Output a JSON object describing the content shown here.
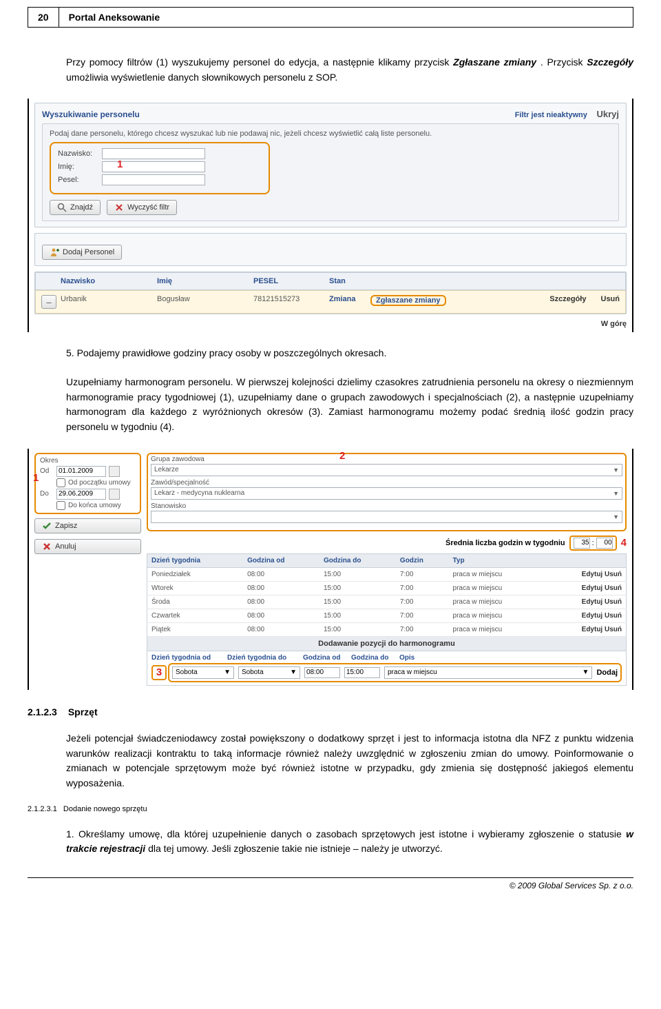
{
  "page": {
    "number": "20",
    "title": "Portal Aneksowanie"
  },
  "para1": {
    "pre": "Przy pomocy filtrów (1) wyszukujemy personel do edycja, a następnie klikamy przycisk ",
    "kw1": "Zgłaszane zmiany",
    "mid": ". Przycisk ",
    "kw2": "Szczegóły",
    "post": " umożliwia wyświetlenie danych słownikowych personelu z SOP."
  },
  "shot1": {
    "panel_title": "Wyszukiwanie personelu",
    "filter_status": "Filtr jest nieaktywny",
    "ukryj": "Ukryj",
    "hint": "Podaj dane personelu, którego chcesz wyszukać lub nie podawaj nic, jeżeli chcesz wyświetlić całą liste personelu.",
    "fields": {
      "nazwisko": "Nazwisko:",
      "imie": "Imię:",
      "pesel": "Pesel:"
    },
    "callout1": "1",
    "btn_find": "Znajdź",
    "btn_clear": "Wyczyść filtr",
    "btn_add": "Dodaj Personel",
    "cols": {
      "nazwisko": "Nazwisko",
      "imie": "Imię",
      "pesel": "PESEL",
      "stan": "Stan"
    },
    "row": {
      "nazwisko": "Urbanik",
      "imie": "Bogusław",
      "pesel": "78121515273",
      "stan": "Zmiana",
      "zglaszane": "Zgłaszane zmiany",
      "szczegoly": "Szczegóły",
      "usun": "Usuń"
    },
    "wgore": "W górę"
  },
  "para2": "5. Podajemy prawidłowe godziny pracy osoby w poszczególnych okresach.",
  "para3": "Uzupełniamy harmonogram personelu. W pierwszej kolejności dzielimy czasokres zatrudnienia personelu na okresy o niezmiennym harmonogramie pracy tygodniowej (1), uzupełniamy dane o grupach zawodowych i specjalnościach (2), a następnie uzupełniamy harmonogram dla każdego z wyróżnionych okresów (3). Zamiast harmonogramu możemy podać średnią ilość godzin pracy personelu w tygodniu (4).",
  "shot2": {
    "okres_label": "Okres",
    "od": "Od",
    "od_val": "01.01.2009",
    "chk_od": "Od początku umowy",
    "do": "Do",
    "do_val": "29.06.2009",
    "chk_do": "Do końca umowy",
    "zapisz": "Zapisz",
    "anuluj": "Anuluj",
    "grupa_label": "Grupa zawodowa",
    "grupa_val": "Lekarze",
    "zawod_label": "Zawód/specjalność",
    "zawod_val": "Lekarz - medycyna nuklearna",
    "stanowisko_label": "Stanowisko",
    "stanowisko_val": "",
    "avg_label": "Średnia liczba godzin w tygodniu",
    "avg_h": "35",
    "avg_m": "00",
    "n1": "1",
    "n2": "2",
    "n3": "3",
    "n4": "4",
    "sch_cols": {
      "day": "Dzień tygodnia",
      "from": "Godzina od",
      "to": "Godzina do",
      "hrs": "Godzin",
      "typ": "Typ"
    },
    "rows": [
      {
        "day": "Poniedziałek",
        "from": "08:00",
        "to": "15:00",
        "hrs": "7:00",
        "typ": "praca w miejscu"
      },
      {
        "day": "Wtorek",
        "from": "08:00",
        "to": "15:00",
        "hrs": "7:00",
        "typ": "praca w miejscu"
      },
      {
        "day": "Środa",
        "from": "08:00",
        "to": "15:00",
        "hrs": "7:00",
        "typ": "praca w miejscu"
      },
      {
        "day": "Czwartek",
        "from": "08:00",
        "to": "15:00",
        "hrs": "7:00",
        "typ": "praca w miejscu"
      },
      {
        "day": "Piątek",
        "from": "08:00",
        "to": "15:00",
        "hrs": "7:00",
        "typ": "praca w miejscu"
      }
    ],
    "edytuj": "Edytuj",
    "usun": "Usuń",
    "add_title": "Dodawanie pozycji do harmonogramu",
    "add_cols": {
      "dod": "Dzień tygodnia od",
      "ddo": "Dzień tygodnia do",
      "god": "Godzina od",
      "gdo": "Godzina do",
      "opis": "Opis"
    },
    "add_vals": {
      "dod": "Sobota",
      "ddo": "Sobota",
      "god": "08:00",
      "gdo": "15:00",
      "opis": "praca w miejscu"
    },
    "dodaj": "Dodaj"
  },
  "sec": {
    "num": "2.1.2.3",
    "title": "Sprzęt",
    "body": "Jeżeli potencjał świadczeniodawcy został powiększony o dodatkowy sprzęt i jest to informacja istotna dla NFZ z punktu widzenia warunków realizacji kontraktu to taką informacje również należy uwzględnić w zgłoszeniu zmian do umowy. Poinformowanie o zmianach w potencjale sprzętowym może być również istotne w przypadku, gdy zmienia się dostępność jakiegoś elementu wyposażenia.",
    "sub_num": "2.1.2.3.1",
    "sub_title": "Dodanie nowego sprzętu",
    "item1_pre": "1. Określamy umowę, dla której uzupełnienie danych o zasobach sprzętowych jest istotne i wybieramy zgłoszenie o statusie ",
    "item1_kw": "w trakcie rejestracji",
    "item1_post": " dla tej umowy. Jeśli zgłoszenie takie nie istnieje – należy je utworzyć."
  },
  "footer": "© 2009 Global Services Sp. z o.o.",
  "colors": {
    "accent_blue": "#2a4f8f",
    "callout_orange": "#e68a00",
    "callout_red": "#d22",
    "panel_border": "#bfcad4",
    "row_yellow": "#fff7e2"
  }
}
